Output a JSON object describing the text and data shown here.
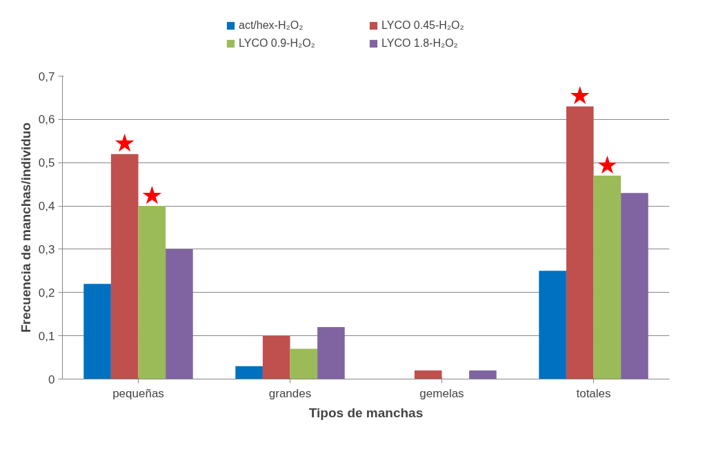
{
  "chart_data": {
    "type": "bar",
    "xlabel": "Tipos de manchas",
    "ylabel": "Frecuencia de manchas/individuo",
    "categories": [
      "pequeñas",
      "grandes",
      "gemelas",
      "totales"
    ],
    "series": [
      {
        "name": "act/hex-H₂O₂",
        "color": "#0070c0",
        "values": [
          0.22,
          0.03,
          0,
          0.25
        ]
      },
      {
        "name": "LYCO 0.45-H₂O₂",
        "color": "#c0504d",
        "values": [
          0.52,
          0.1,
          0.02,
          0.63
        ],
        "value_labels": [
          "★",
          null,
          null,
          "★"
        ]
      },
      {
        "name": "LYCO 0.9-H₂O₂",
        "color": "#9bbb59",
        "values": [
          0.4,
          0.07,
          0,
          0.47
        ],
        "value_labels": [
          "★",
          null,
          null,
          "★"
        ]
      },
      {
        "name": "LYCO 1.8-H₂O₂",
        "color": "#8064a2",
        "values": [
          0.3,
          0.12,
          0.02,
          0.43
        ]
      }
    ],
    "ylim": [
      0,
      0.7
    ],
    "yticks": [
      0,
      {
        "value": 0.1,
        "label": "0,1"
      },
      {
        "value": 0.2,
        "label": "0,2"
      },
      {
        "value": 0.3,
        "label": "0,3"
      },
      {
        "value": 0.4,
        "label": "0,4"
      },
      {
        "value": 0.5,
        "label": "0,5"
      },
      {
        "value": 0.6,
        "label": "0,6"
      },
      {
        "value": 0.7,
        "label": "0,7"
      }
    ],
    "grid": "y",
    "legend": "top"
  }
}
